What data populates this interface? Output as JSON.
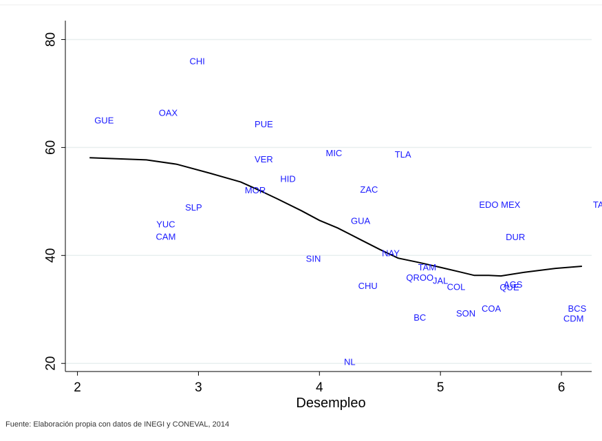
{
  "chart_data": {
    "type": "scatter",
    "title": "",
    "xlabel": "Desempleo",
    "ylabel": "",
    "xlim": [
      1.9,
      6.25
    ],
    "ylim": [
      18.5,
      83.5
    ],
    "xticks": [
      2,
      3,
      4,
      5,
      6
    ],
    "yticks": [
      20,
      40,
      60,
      80
    ],
    "grid": true,
    "colors": {
      "points": "#1a1aff",
      "line": "#000000",
      "grid": "#e8efef"
    },
    "points": [
      {
        "label": "GUE",
        "x": 2.22,
        "y": 65.0
      },
      {
        "label": "OAX",
        "x": 2.75,
        "y": 66.4
      },
      {
        "label": "CHI",
        "x": 2.99,
        "y": 76.0
      },
      {
        "label": "PUE",
        "x": 3.54,
        "y": 64.3
      },
      {
        "label": "VER",
        "x": 3.54,
        "y": 57.8
      },
      {
        "label": "HID",
        "x": 3.74,
        "y": 54.2
      },
      {
        "label": "MOR",
        "x": 3.47,
        "y": 52.1
      },
      {
        "label": "SLP",
        "x": 2.96,
        "y": 48.9
      },
      {
        "label": "YUC",
        "x": 2.73,
        "y": 45.8
      },
      {
        "label": "CAM",
        "x": 2.73,
        "y": 43.5
      },
      {
        "label": "MIC",
        "x": 4.12,
        "y": 59.0
      },
      {
        "label": "TLA",
        "x": 4.69,
        "y": 58.7
      },
      {
        "label": "ZAC",
        "x": 4.41,
        "y": 52.2
      },
      {
        "label": "GUA",
        "x": 4.34,
        "y": 46.4
      },
      {
        "label": "SIN",
        "x": 3.95,
        "y": 39.4
      },
      {
        "label": "NAY",
        "x": 4.59,
        "y": 40.4
      },
      {
        "label": "CHU",
        "x": 4.4,
        "y": 34.4
      },
      {
        "label": "NL",
        "x": 4.25,
        "y": 20.3
      },
      {
        "label": "TAM",
        "x": 4.89,
        "y": 37.8
      },
      {
        "label": "QROO",
        "x": 4.83,
        "y": 35.9
      },
      {
        "label": "JAL",
        "x": 5.0,
        "y": 35.3
      },
      {
        "label": "COL",
        "x": 5.13,
        "y": 34.2
      },
      {
        "label": "BC",
        "x": 4.83,
        "y": 28.5
      },
      {
        "label": "SON",
        "x": 5.21,
        "y": 29.3
      },
      {
        "label": "COA",
        "x": 5.42,
        "y": 30.2
      },
      {
        "label": "EDO MEX",
        "x": 5.49,
        "y": 49.4
      },
      {
        "label": "DUR",
        "x": 5.62,
        "y": 43.4
      },
      {
        "label": "AGS",
        "x": 5.6,
        "y": 34.6
      },
      {
        "label": "QUE",
        "x": 5.57,
        "y": 34.1
      },
      {
        "label": "BCS",
        "x": 6.13,
        "y": 30.2
      },
      {
        "label": "CDM",
        "x": 6.1,
        "y": 28.3
      },
      {
        "label": "TAB",
        "x": 6.33,
        "y": 49.4
      }
    ],
    "fit_line": {
      "x": [
        2.1,
        2.57,
        2.82,
        3.1,
        3.35,
        3.5,
        3.65,
        3.85,
        4.0,
        4.15,
        4.35,
        4.5,
        4.65,
        4.8,
        5.0,
        5.15,
        5.28,
        5.4,
        5.5,
        5.7,
        5.95,
        6.17
      ],
      "y": [
        58.1,
        57.7,
        56.9,
        55.2,
        53.6,
        52.1,
        50.5,
        48.3,
        46.5,
        45.1,
        42.8,
        41.1,
        39.5,
        38.8,
        37.8,
        37.0,
        36.3,
        36.3,
        36.2,
        36.9,
        37.6,
        38.0
      ]
    }
  },
  "source": "Fuente: Elaboración propia con datos de INEGI y CONEVAL, 2014"
}
